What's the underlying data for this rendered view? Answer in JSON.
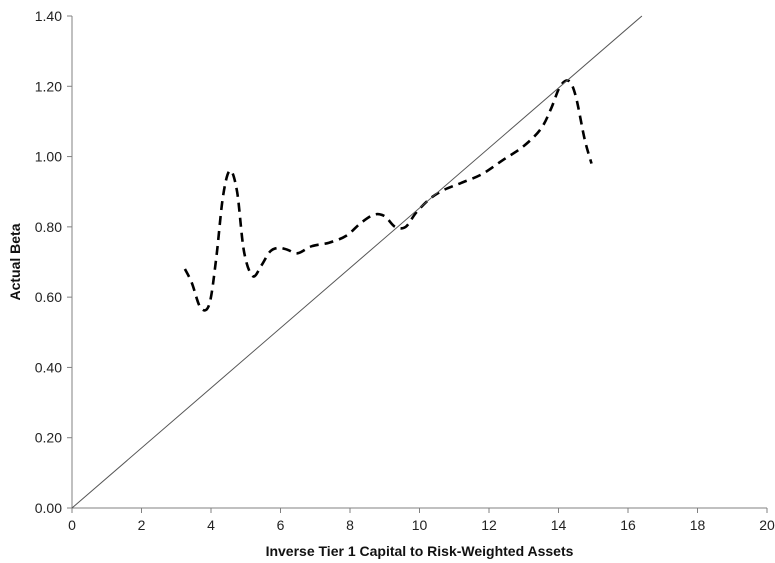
{
  "chart_data": {
    "type": "line",
    "title": "",
    "xlabel": "Inverse Tier 1 Capital to Risk-Weighted Assets",
    "ylabel": "Actual Beta",
    "xlim": [
      0,
      20
    ],
    "ylim": [
      0,
      1.4
    ],
    "x_ticks": [
      "0",
      "2",
      "4",
      "6",
      "8",
      "10",
      "12",
      "14",
      "16",
      "18",
      "20"
    ],
    "y_ticks": [
      "0.00",
      "0.20",
      "0.40",
      "0.60",
      "0.80",
      "1.00",
      "1.20",
      "1.40"
    ],
    "grid": false,
    "legend": "none",
    "series": [
      {
        "style": "dashed",
        "color": "#000000",
        "x": [
          3.25,
          3.45,
          3.7,
          3.95,
          4.15,
          4.35,
          4.55,
          4.75,
          4.95,
          5.2,
          5.45,
          5.7,
          5.95,
          6.2,
          6.5,
          6.9,
          7.4,
          7.9,
          8.3,
          8.7,
          9.0,
          9.3,
          9.6,
          9.9,
          10.3,
          10.7,
          11.2,
          11.8,
          12.4,
          13.0,
          13.5,
          13.8,
          14.05,
          14.3,
          14.5,
          14.75,
          14.95
        ],
        "y": [
          0.68,
          0.64,
          0.57,
          0.58,
          0.71,
          0.89,
          0.96,
          0.9,
          0.73,
          0.66,
          0.69,
          0.73,
          0.74,
          0.735,
          0.725,
          0.745,
          0.755,
          0.775,
          0.81,
          0.835,
          0.83,
          0.8,
          0.8,
          0.84,
          0.88,
          0.905,
          0.925,
          0.95,
          0.99,
          1.03,
          1.08,
          1.14,
          1.2,
          1.215,
          1.17,
          1.05,
          0.98
        ]
      },
      {
        "style": "solid",
        "color": "#555555",
        "x": [
          0,
          16.4
        ],
        "y": [
          0,
          1.4
        ]
      }
    ]
  }
}
